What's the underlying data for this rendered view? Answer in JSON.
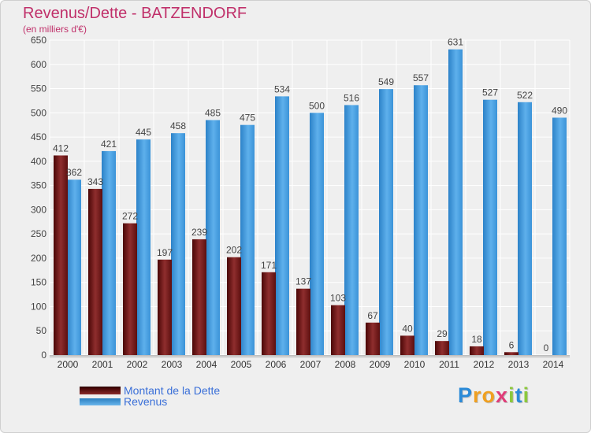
{
  "title": "Revenus/Dette - BATZENDORF",
  "subtitle": "(en milliers d'€)",
  "chart_data": {
    "type": "bar",
    "title": "Revenus/Dette - BATZENDORF",
    "ylabel": "(en milliers d'€)",
    "xlabel": "",
    "ylim": [
      0,
      650
    ],
    "yticks": [
      0,
      50,
      100,
      150,
      200,
      250,
      300,
      350,
      400,
      450,
      500,
      550,
      600,
      650
    ],
    "grid": true,
    "legend_position": "bottom-left",
    "categories": [
      "2000",
      "2001",
      "2002",
      "2003",
      "2004",
      "2005",
      "2006",
      "2007",
      "2008",
      "2009",
      "2010",
      "2011",
      "2012",
      "2013",
      "2014"
    ],
    "series": [
      {
        "name": "Montant de la Dette",
        "color": "#7a1c1c",
        "values": [
          412,
          343,
          272,
          197,
          239,
          202,
          171,
          137,
          103,
          67,
          40,
          29,
          18,
          6,
          0
        ]
      },
      {
        "name": "Revenus",
        "color": "#4aa3e8",
        "values": [
          362,
          421,
          445,
          458,
          485,
          475,
          534,
          500,
          516,
          549,
          557,
          631,
          527,
          522,
          490
        ]
      }
    ]
  },
  "legend": {
    "debt_label": "Montant de la Dette",
    "revenue_label": "Revenus"
  },
  "logo": {
    "letters": [
      "P",
      "r",
      "o",
      "x",
      "i",
      "t",
      "i"
    ],
    "colors": [
      "#2a8ad8",
      "#f0a020",
      "#f0a020",
      "#e03c78",
      "#8cc83c",
      "#2a8ad8",
      "#8cc83c"
    ]
  }
}
